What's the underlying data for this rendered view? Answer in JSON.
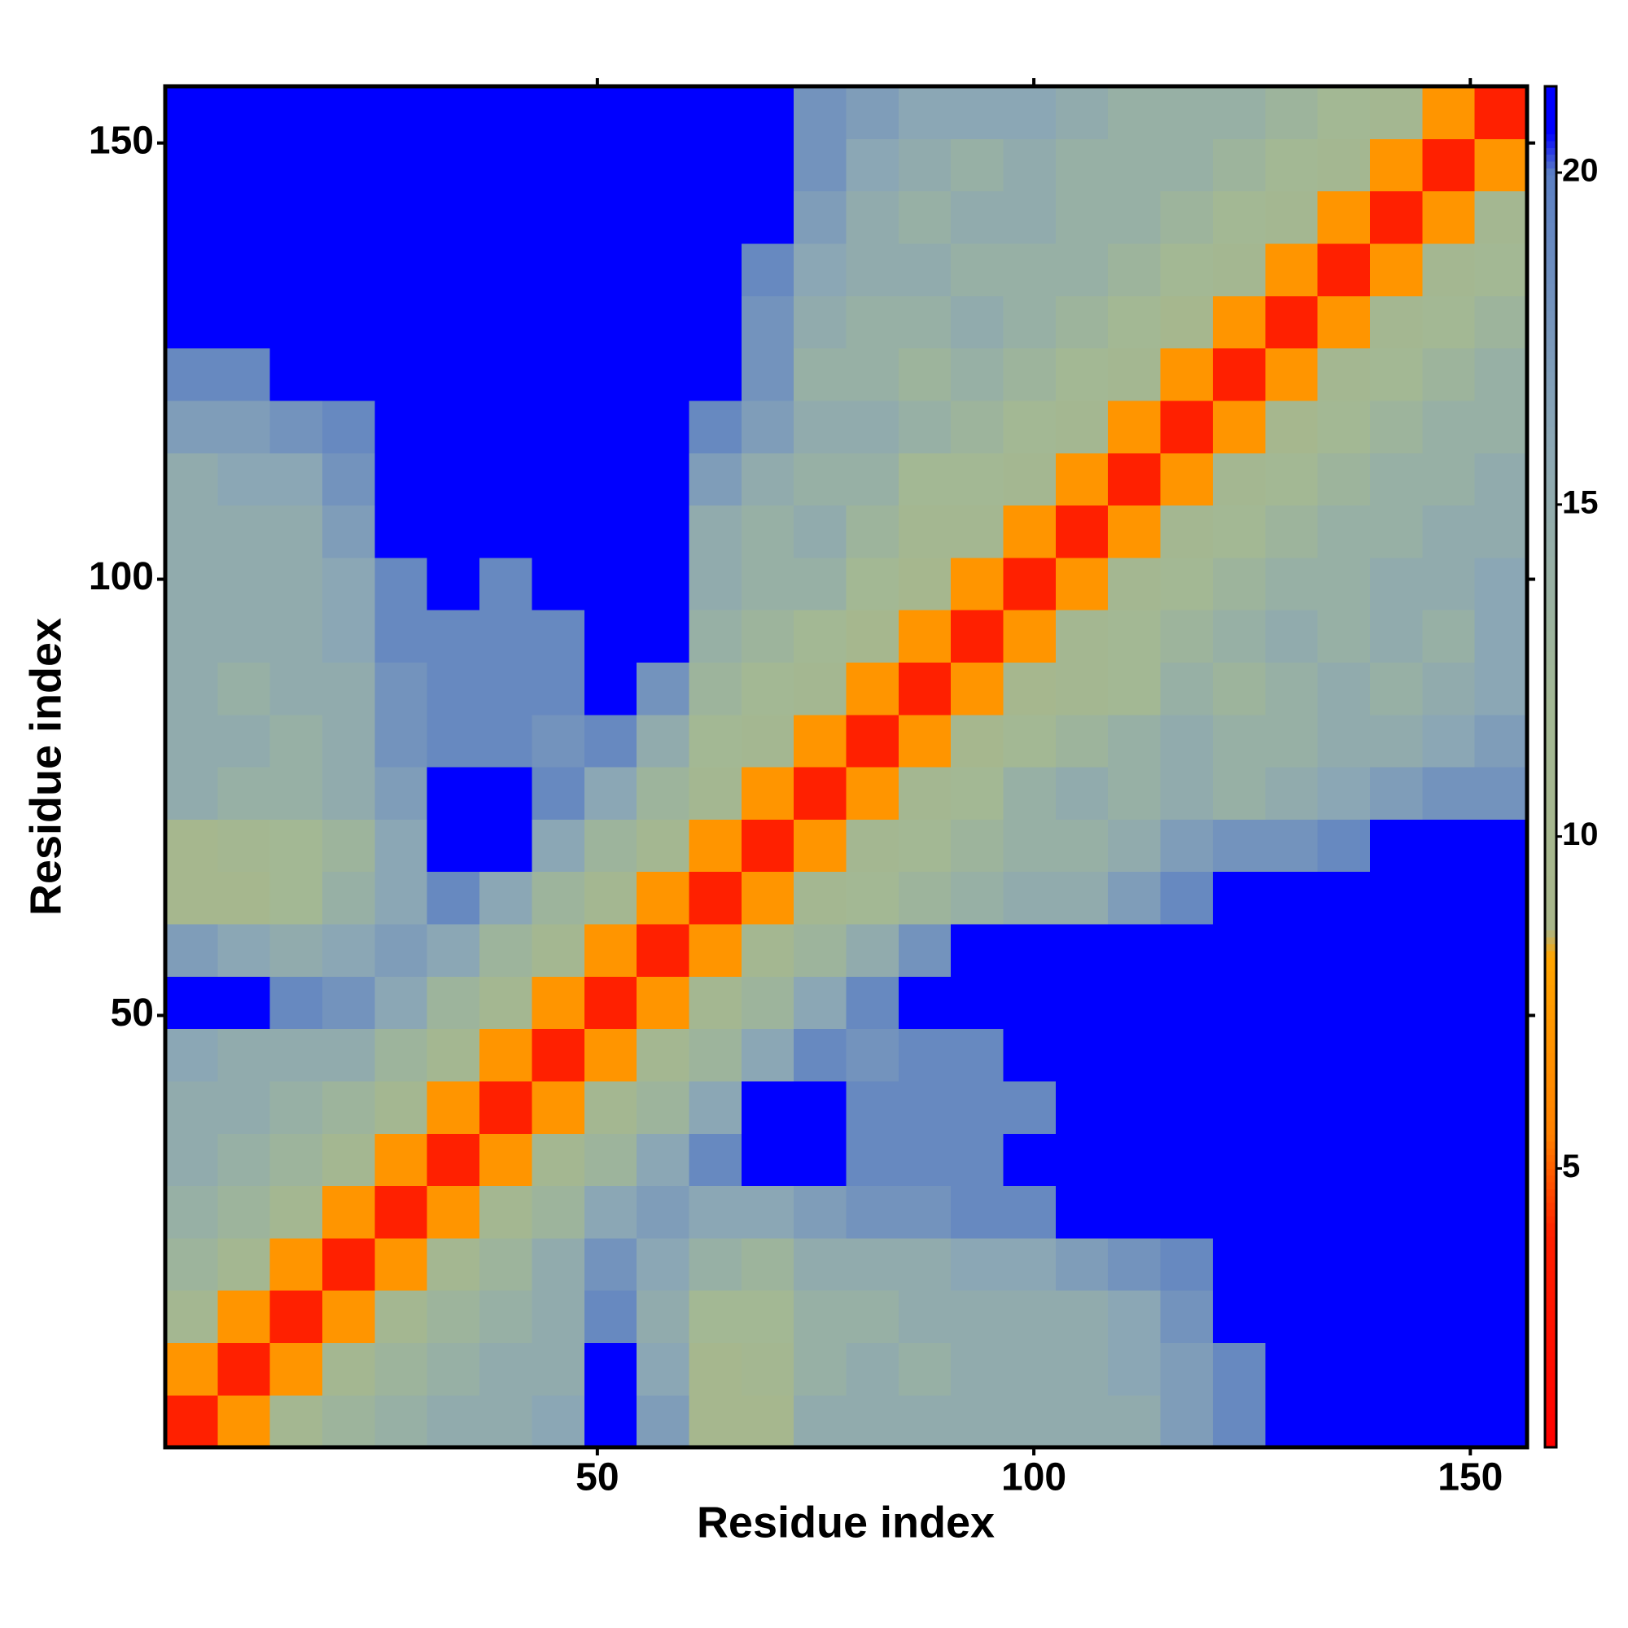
{
  "chart_data": {
    "type": "heatmap",
    "xlabel": "Residue index",
    "ylabel": "Residue index",
    "x_bins": [
      0.5,
      6.5,
      12.5,
      18.5,
      24.5,
      30.5,
      36.5,
      42.5,
      48.5,
      54.5,
      60.5,
      66.5,
      72.5,
      78.5,
      84.5,
      90.5,
      96.5,
      102.5,
      108.5,
      114.5,
      120.5,
      126.5,
      132.5,
      138.5,
      144.5,
      150.5,
      156.5
    ],
    "y_bins": [
      0.5,
      6.5,
      12.5,
      18.5,
      24.5,
      30.5,
      36.5,
      42.5,
      48.5,
      54.5,
      60.5,
      66.5,
      72.5,
      78.5,
      84.5,
      90.5,
      96.5,
      102.5,
      108.5,
      114.5,
      120.5,
      126.5,
      132.5,
      138.5,
      144.5,
      150.5,
      156.5
    ],
    "values": [
      [
        4,
        7,
        11,
        13,
        14,
        15,
        15,
        16,
        21,
        17,
        10,
        10,
        15,
        15,
        15,
        15,
        15,
        15,
        15,
        17,
        19,
        21,
        21,
        21,
        21,
        21
      ],
      [
        7,
        4,
        7,
        11,
        13,
        14,
        15,
        15,
        21,
        16,
        10,
        11,
        14,
        15,
        14,
        15,
        15,
        15,
        16,
        17,
        19,
        21,
        21,
        21,
        21,
        21
      ],
      [
        11,
        7,
        4,
        7,
        11,
        13,
        14,
        15,
        19,
        15,
        12,
        12,
        14,
        14,
        15,
        15,
        15,
        15,
        16,
        18,
        21,
        21,
        21,
        21,
        21,
        21
      ],
      [
        13,
        11,
        7,
        4,
        7,
        11,
        13,
        15,
        18,
        16,
        14,
        13,
        15,
        15,
        15,
        16,
        16,
        17,
        18,
        19,
        21,
        21,
        21,
        21,
        21,
        21
      ],
      [
        14,
        13,
        11,
        7,
        4,
        7,
        11,
        13,
        16,
        17,
        16,
        16,
        17,
        18,
        18,
        19,
        19,
        21,
        21,
        21,
        21,
        21,
        21,
        21,
        21,
        21
      ],
      [
        15,
        14,
        13,
        11,
        7,
        4,
        7,
        11,
        13,
        16,
        19,
        21,
        21,
        19,
        19,
        19,
        21,
        21,
        21,
        21,
        21,
        21,
        21,
        21,
        21,
        21
      ],
      [
        15,
        15,
        14,
        13,
        11,
        7,
        4,
        7,
        11,
        13,
        16,
        21,
        21,
        19,
        19,
        19,
        19,
        21,
        21,
        21,
        21,
        21,
        21,
        21,
        21,
        21
      ],
      [
        16,
        15,
        15,
        15,
        13,
        11,
        7,
        4,
        7,
        11,
        13,
        16,
        19,
        18,
        19,
        19,
        21,
        21,
        21,
        21,
        21,
        21,
        21,
        21,
        21,
        21
      ],
      [
        21,
        21,
        19,
        18,
        16,
        13,
        11,
        7,
        4,
        7,
        11,
        13,
        16,
        19,
        21,
        21,
        21,
        21,
        21,
        21,
        21,
        21,
        21,
        21,
        21,
        21
      ],
      [
        17,
        16,
        15,
        16,
        17,
        16,
        13,
        11,
        7,
        4,
        7,
        11,
        13,
        15,
        18,
        21,
        21,
        21,
        21,
        21,
        21,
        21,
        21,
        21,
        21,
        21
      ],
      [
        10,
        10,
        12,
        14,
        16,
        19,
        16,
        13,
        11,
        7,
        4,
        7,
        11,
        12,
        13,
        14,
        15,
        15,
        17,
        19,
        21,
        21,
        21,
        21,
        21,
        21
      ],
      [
        10,
        11,
        12,
        13,
        16,
        21,
        21,
        16,
        13,
        11,
        7,
        4,
        7,
        11,
        12,
        13,
        14,
        14,
        15,
        17,
        18,
        18,
        19,
        21,
        21,
        21
      ],
      [
        15,
        14,
        14,
        15,
        17,
        21,
        21,
        19,
        16,
        13,
        11,
        7,
        4,
        7,
        11,
        12,
        14,
        15,
        14,
        15,
        14,
        15,
        16,
        17,
        18,
        18
      ],
      [
        15,
        15,
        14,
        15,
        18,
        19,
        19,
        18,
        19,
        15,
        12,
        11,
        7,
        4,
        7,
        10,
        12,
        13,
        14,
        15,
        14,
        14,
        15,
        15,
        16,
        17
      ],
      [
        15,
        14,
        15,
        15,
        18,
        19,
        19,
        19,
        21,
        18,
        13,
        12,
        11,
        7,
        4,
        7,
        10,
        11,
        12,
        14,
        13,
        14,
        15,
        14,
        15,
        16
      ],
      [
        15,
        15,
        15,
        16,
        19,
        19,
        19,
        19,
        21,
        21,
        14,
        13,
        12,
        10,
        7,
        4,
        7,
        11,
        12,
        13,
        14,
        15,
        14,
        15,
        14,
        16
      ],
      [
        15,
        15,
        15,
        16,
        19,
        21,
        19,
        21,
        21,
        21,
        15,
        14,
        14,
        12,
        10,
        7,
        4,
        7,
        11,
        12,
        13,
        14,
        14,
        15,
        15,
        16
      ],
      [
        15,
        15,
        15,
        17,
        21,
        21,
        21,
        21,
        21,
        21,
        15,
        14,
        15,
        13,
        11,
        11,
        7,
        4,
        7,
        11,
        12,
        13,
        14,
        14,
        15,
        15
      ],
      [
        15,
        16,
        16,
        18,
        21,
        21,
        21,
        21,
        21,
        21,
        17,
        15,
        14,
        14,
        12,
        12,
        11,
        7,
        4,
        7,
        11,
        12,
        13,
        14,
        14,
        15
      ],
      [
        17,
        17,
        18,
        19,
        21,
        21,
        21,
        21,
        21,
        21,
        19,
        17,
        15,
        15,
        14,
        13,
        12,
        11,
        7,
        4,
        7,
        10,
        12,
        13,
        14,
        14
      ],
      [
        19,
        19,
        21,
        21,
        21,
        21,
        21,
        21,
        21,
        21,
        21,
        18,
        14,
        14,
        13,
        14,
        13,
        12,
        11,
        7,
        4,
        7,
        11,
        12,
        13,
        14
      ],
      [
        21,
        21,
        21,
        21,
        21,
        21,
        21,
        21,
        21,
        21,
        21,
        18,
        15,
        14,
        14,
        15,
        14,
        13,
        12,
        10,
        7,
        4,
        7,
        11,
        12,
        13
      ],
      [
        21,
        21,
        21,
        21,
        21,
        21,
        21,
        21,
        21,
        21,
        21,
        19,
        16,
        15,
        15,
        14,
        14,
        14,
        13,
        12,
        11,
        7,
        4,
        7,
        11,
        12
      ],
      [
        21,
        21,
        21,
        21,
        21,
        21,
        21,
        21,
        21,
        21,
        21,
        21,
        17,
        15,
        14,
        15,
        15,
        14,
        14,
        13,
        12,
        11,
        7,
        4,
        7,
        11
      ],
      [
        21,
        21,
        21,
        21,
        21,
        21,
        21,
        21,
        21,
        21,
        21,
        21,
        18,
        16,
        15,
        14,
        15,
        14,
        14,
        14,
        13,
        12,
        11,
        7,
        4,
        7
      ],
      [
        21,
        21,
        21,
        21,
        21,
        21,
        21,
        21,
        21,
        21,
        21,
        21,
        18,
        17,
        16,
        16,
        16,
        15,
        14,
        14,
        14,
        13,
        12,
        11,
        7,
        4
      ]
    ],
    "xlim": [
      0.5,
      156.5
    ],
    "ylim": [
      0.5,
      156.5
    ],
    "xticks": [
      50,
      100,
      150
    ],
    "yticks": [
      50,
      100,
      150
    ],
    "colorscale": [
      [
        0.8,
        "#ff0000"
      ],
      [
        4,
        "#ff2000"
      ],
      [
        5.5,
        "#ff8000"
      ],
      [
        8.2,
        "#ffa500"
      ],
      [
        8.6,
        "#a8b68a"
      ],
      [
        12,
        "#a3b894"
      ],
      [
        16,
        "#8ba7b5"
      ],
      [
        20,
        "#5b7fc4"
      ],
      [
        20.6,
        "#0000ff"
      ],
      [
        21.3,
        "#0000ff"
      ]
    ],
    "colorbar_lim": [
      0.8,
      21.3
    ],
    "colorbar_ticks": [
      5,
      10,
      15,
      20
    ]
  }
}
